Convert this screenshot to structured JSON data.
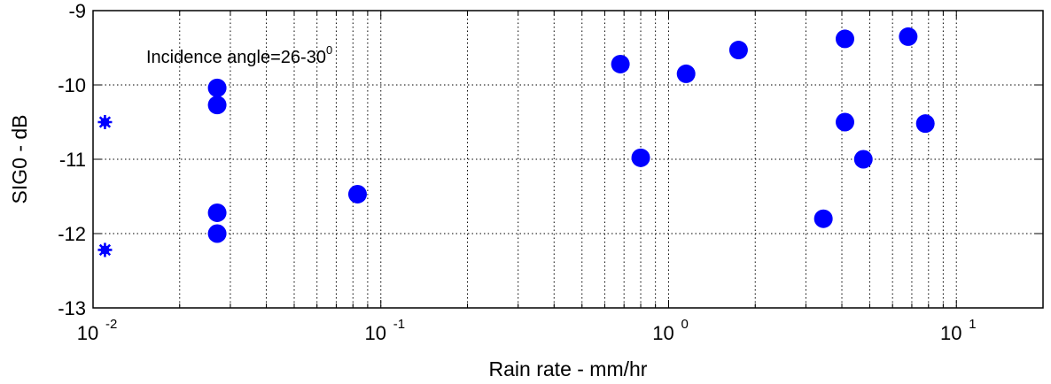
{
  "chart_data": {
    "type": "scatter",
    "xlabel": "Rain rate - mm/hr",
    "ylabel": "SIG0 - dB",
    "xscale": "log",
    "xlim": [
      0.01,
      20
    ],
    "ylim": [
      -13,
      -9
    ],
    "grid": true,
    "x_ticks": [
      {
        "value": 0.01,
        "base": "10",
        "exp": "-2"
      },
      {
        "value": 0.1,
        "base": "10",
        "exp": "-1"
      },
      {
        "value": 1,
        "base": "10",
        "exp": "0"
      },
      {
        "value": 10,
        "base": "10",
        "exp": "1"
      }
    ],
    "y_ticks": [
      {
        "value": -9,
        "label": "-9"
      },
      {
        "value": -10,
        "label": "-10"
      },
      {
        "value": -11,
        "label": "-11"
      },
      {
        "value": -12,
        "label": "-12"
      },
      {
        "value": -13,
        "label": "-13"
      }
    ],
    "annotation": {
      "text": "Incidence angle=26-30",
      "sup": "0"
    },
    "marker_color": "#0000ff",
    "series": [
      {
        "marker": "star",
        "points": [
          {
            "x": 0.011,
            "y": -10.5
          },
          {
            "x": 0.011,
            "y": -12.22
          }
        ]
      },
      {
        "marker": "circle",
        "points": [
          {
            "x": 0.027,
            "y": -10.04
          },
          {
            "x": 0.027,
            "y": -10.27
          },
          {
            "x": 0.027,
            "y": -11.72
          },
          {
            "x": 0.027,
            "y": -12.0
          },
          {
            "x": 0.083,
            "y": -11.47
          },
          {
            "x": 0.68,
            "y": -9.72
          },
          {
            "x": 0.8,
            "y": -10.98
          },
          {
            "x": 1.15,
            "y": -9.85
          },
          {
            "x": 1.75,
            "y": -9.53
          },
          {
            "x": 3.45,
            "y": -11.8
          },
          {
            "x": 4.1,
            "y": -9.38
          },
          {
            "x": 4.1,
            "y": -10.5
          },
          {
            "x": 4.75,
            "y": -11.0
          },
          {
            "x": 6.8,
            "y": -9.35
          },
          {
            "x": 7.8,
            "y": -10.52
          }
        ]
      }
    ]
  }
}
